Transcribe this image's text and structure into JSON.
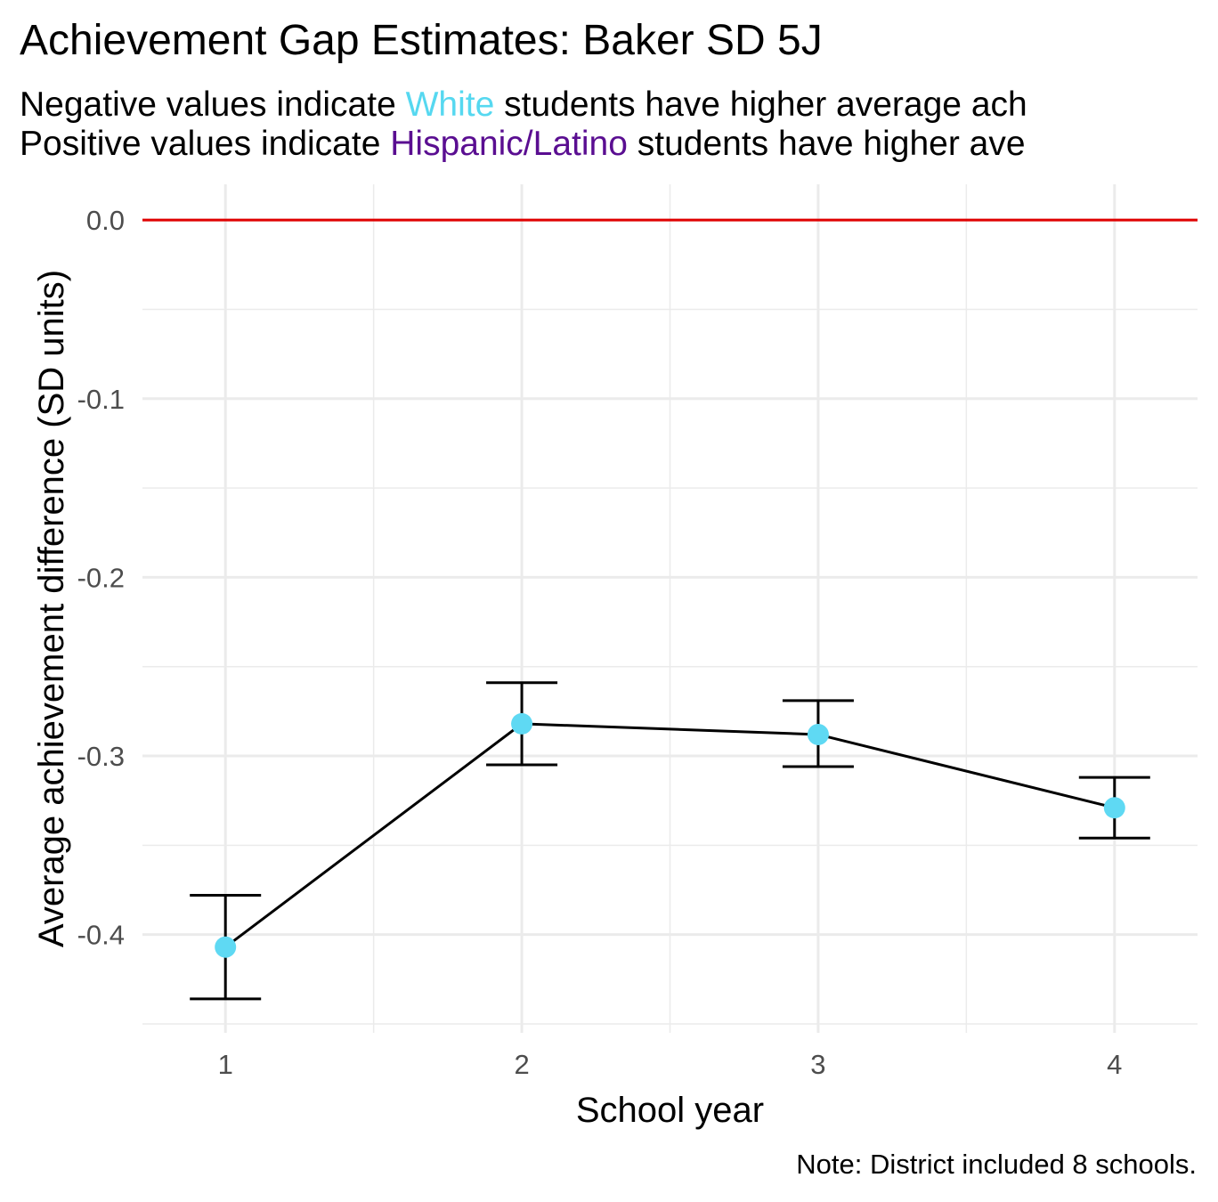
{
  "title": "Achievement Gap Estimates: Baker SD 5J",
  "subtitle": {
    "line1": {
      "pre": "Negative values indicate ",
      "group": "White",
      "post": " students have higher average ach"
    },
    "line2": {
      "pre": "Positive values indicate ",
      "group": "Hispanic/Latino",
      "post": " students have higher ave"
    }
  },
  "colors": {
    "white_group": "#56d8f0",
    "latino_group": "#5a0e91",
    "reference_line": "#e00000",
    "point": "#5fd9f3",
    "line": "#000000",
    "grid": "#ebebeb"
  },
  "caption": "Note: District included 8 schools.",
  "chart_data": {
    "type": "line",
    "xlabel": "School year",
    "ylabel": "Average achievement difference (SD units)",
    "x": [
      1,
      2,
      3,
      4
    ],
    "x_tick_labels": [
      "1",
      "2",
      "3",
      "4"
    ],
    "y_tick_labels": [
      "0.0",
      "-0.1",
      "-0.2",
      "-0.3",
      "-0.4"
    ],
    "y_ticks": [
      0.0,
      -0.1,
      -0.2,
      -0.3,
      -0.4
    ],
    "xlim": [
      0.72,
      4.28
    ],
    "ylim": [
      -0.455,
      0.02
    ],
    "series": [
      {
        "values": [
          -0.407,
          -0.282,
          -0.288,
          -0.329
        ],
        "lower": [
          -0.436,
          -0.305,
          -0.306,
          -0.346
        ],
        "upper": [
          -0.378,
          -0.259,
          -0.269,
          -0.312
        ]
      }
    ],
    "reference_line": {
      "y": 0.0
    },
    "grid": true
  }
}
